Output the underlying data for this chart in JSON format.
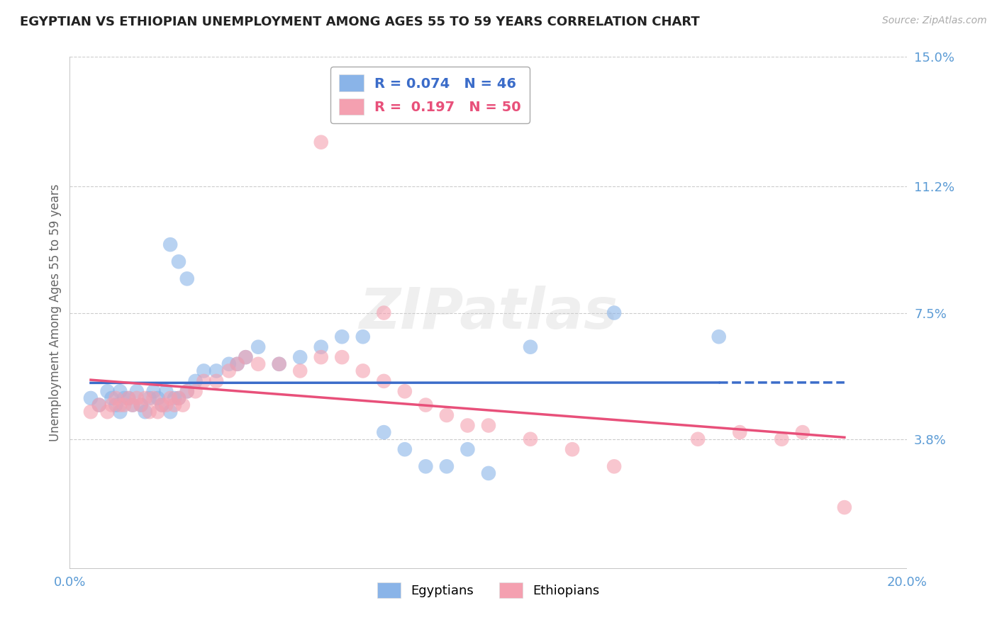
{
  "title": "EGYPTIAN VS ETHIOPIAN UNEMPLOYMENT AMONG AGES 55 TO 59 YEARS CORRELATION CHART",
  "source": "Source: ZipAtlas.com",
  "ylabel": "Unemployment Among Ages 55 to 59 years",
  "xlim": [
    0.0,
    0.2
  ],
  "ylim": [
    0.0,
    0.15
  ],
  "yticks_right": [
    0.038,
    0.075,
    0.112,
    0.15
  ],
  "ytick_right_labels": [
    "3.8%",
    "7.5%",
    "11.2%",
    "15.0%"
  ],
  "egyptian_R": "0.074",
  "egyptian_N": "46",
  "ethiopian_R": "0.197",
  "ethiopian_N": "50",
  "blue_color": "#8AB4E8",
  "pink_color": "#F4A0B0",
  "blue_line_color": "#3B6CC9",
  "pink_line_color": "#E8507A",
  "legend_label_egyptian": "Egyptians",
  "legend_label_ethiopian": "Ethiopians",
  "background_color": "#FFFFFF",
  "grid_color": "#CCCCCC",
  "title_color": "#222222",
  "axis_label_color": "#5B9BD5",
  "watermark": "ZIPatlas",
  "egyptian_x": [
    0.005,
    0.007,
    0.009,
    0.01,
    0.011,
    0.012,
    0.012,
    0.013,
    0.014,
    0.015,
    0.016,
    0.017,
    0.018,
    0.019,
    0.02,
    0.021,
    0.022,
    0.023,
    0.024,
    0.025,
    0.026,
    0.028,
    0.03,
    0.032,
    0.035,
    0.038,
    0.04,
    0.042,
    0.045,
    0.05,
    0.055,
    0.06,
    0.065,
    0.07,
    0.075,
    0.08,
    0.085,
    0.09,
    0.095,
    0.1,
    0.11,
    0.13,
    0.155,
    0.024,
    0.026,
    0.028
  ],
  "egyptian_y": [
    0.05,
    0.048,
    0.052,
    0.05,
    0.048,
    0.052,
    0.046,
    0.05,
    0.05,
    0.048,
    0.052,
    0.048,
    0.046,
    0.05,
    0.052,
    0.05,
    0.048,
    0.052,
    0.046,
    0.05,
    0.05,
    0.052,
    0.055,
    0.058,
    0.058,
    0.06,
    0.06,
    0.062,
    0.065,
    0.06,
    0.062,
    0.065,
    0.068,
    0.068,
    0.04,
    0.035,
    0.03,
    0.03,
    0.035,
    0.028,
    0.065,
    0.075,
    0.068,
    0.095,
    0.09,
    0.085
  ],
  "ethiopian_x": [
    0.005,
    0.007,
    0.009,
    0.01,
    0.011,
    0.012,
    0.013,
    0.014,
    0.015,
    0.016,
    0.017,
    0.018,
    0.019,
    0.02,
    0.021,
    0.022,
    0.023,
    0.024,
    0.025,
    0.026,
    0.027,
    0.028,
    0.03,
    0.032,
    0.035,
    0.038,
    0.04,
    0.042,
    0.045,
    0.05,
    0.055,
    0.06,
    0.065,
    0.07,
    0.075,
    0.08,
    0.085,
    0.09,
    0.095,
    0.1,
    0.11,
    0.12,
    0.13,
    0.15,
    0.16,
    0.17,
    0.175,
    0.185,
    0.06,
    0.075
  ],
  "ethiopian_y": [
    0.046,
    0.048,
    0.046,
    0.048,
    0.05,
    0.048,
    0.048,
    0.05,
    0.048,
    0.05,
    0.048,
    0.05,
    0.046,
    0.05,
    0.046,
    0.048,
    0.048,
    0.05,
    0.048,
    0.05,
    0.048,
    0.052,
    0.052,
    0.055,
    0.055,
    0.058,
    0.06,
    0.062,
    0.06,
    0.06,
    0.058,
    0.062,
    0.062,
    0.058,
    0.055,
    0.052,
    0.048,
    0.045,
    0.042,
    0.042,
    0.038,
    0.035,
    0.03,
    0.038,
    0.04,
    0.038,
    0.04,
    0.018,
    0.125,
    0.075
  ]
}
